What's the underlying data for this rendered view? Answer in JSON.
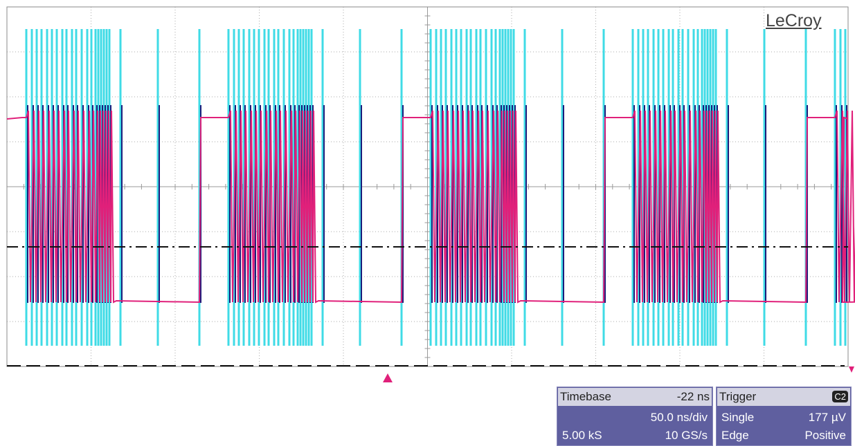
{
  "brand": "LeCroy",
  "timebase": {
    "title": "Timebase",
    "delay": "-22 ns",
    "scale": "50.0 ns/div",
    "samples": "5.00 kS",
    "rate": "10 GS/s"
  },
  "trigger": {
    "title": "Trigger",
    "source": "C2",
    "mode": "Single",
    "level": "177 µV",
    "type": "Edge",
    "slope": "Positive"
  }
}
